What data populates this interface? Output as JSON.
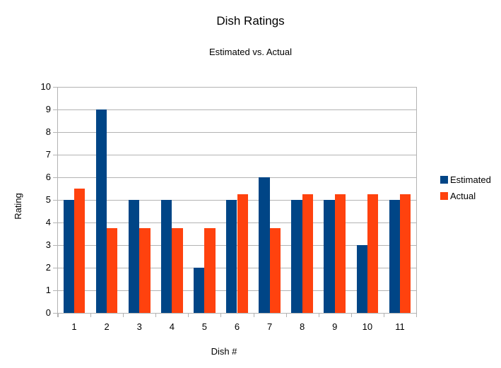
{
  "chart_data": {
    "type": "bar",
    "title": "Dish Ratings",
    "subtitle": "Estimated vs. Actual",
    "xlabel": "Dish #",
    "ylabel": "Rating",
    "categories": [
      "1",
      "2",
      "3",
      "4",
      "5",
      "6",
      "7",
      "8",
      "9",
      "10",
      "11"
    ],
    "series": [
      {
        "name": "Estimated",
        "color": "#004586",
        "values": [
          5,
          9,
          5,
          5,
          2,
          5,
          6,
          5,
          5,
          3,
          5
        ]
      },
      {
        "name": "Actual",
        "color": "#FF420E",
        "values": [
          5.5,
          3.75,
          3.75,
          3.75,
          3.75,
          5.25,
          3.75,
          5.25,
          5.25,
          5.25,
          5.25
        ]
      }
    ],
    "ylim": [
      0,
      10
    ],
    "ytick_step": 1,
    "grid": true,
    "legend_position": "right",
    "colors": {
      "grid": "#B3B3B3",
      "axis": "#B3B3B3",
      "text": "#000000",
      "background": "#FFFFFF"
    }
  }
}
